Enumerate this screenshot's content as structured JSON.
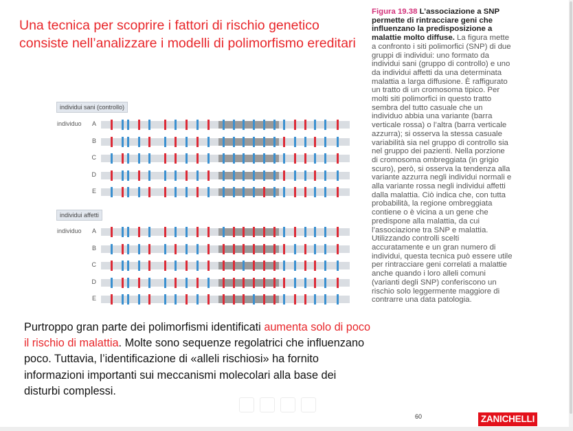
{
  "slide": {
    "title_line1": "Una tecnica per scoprire i fattori di rischio genetico",
    "title_line2": "consiste nell’analizzare i modelli di polimorfismo ereditari",
    "caption_head_num": "Figura 19.38",
    "caption_head_rest": " L’associazione a SNP permette di rintracciare geni che influenzano la predisposizione a malattie molto diffuse.",
    "caption_body": " La figura mette a confronto i siti polimorfici (SNP) di due gruppi di individui: uno formato da individui sani (gruppo di controllo) e uno da individui affetti da una determinata malattia a larga diffusione. È raffigurato un tratto di un cromosoma tipico. Per molti siti polimorfici in questo tratto sembra del tutto casuale che un individuo abbia una variante (barra verticale rossa) o l’altra (barra verticale azzurra); si osserva la stessa casuale variabilità sia nel gruppo di controllo sia nel gruppo dei pazienti. Nella porzione di cromosoma ombreggiata (in grigio scuro), però, si osserva la tendenza alla variante azzurra negli individui normali e alla variante rossa negli individui affetti dalla malattia. Ciò indica che, con tutta probabilità, la regione ombreggiata contiene o è vicina a un gene che predispone alla malattia, da cui l’associazione tra SNP e malattia. Utilizzando controlli scelti accuratamente e un gran numero di individui, questa tecnica può essere utile per rintracciare geni correlati a malattie anche quando i loro alleli comuni (varianti degli SNP) conferiscono un rischio solo leggermente maggiore di contrarre una data patologia.",
    "bottom_part1": "Purtroppo gran parte dei polimorfismi identificati ",
    "bottom_red": "aumenta solo di poco il rischio di malattia",
    "bottom_part2": ". Molte sono sequenze regolatrici che influenzano poco. Tuttavia, l’identificazione di «alleli rischiosi» ha fornito informazioni importanti sui meccanismi molecolari alla base dei disturbi complessi.",
    "page_number": "60",
    "logo_text": "ZANICHELLI"
  },
  "diagram": {
    "colors": {
      "red": "#dd2a36",
      "blue": "#3a90d0",
      "track": "#d9dde2",
      "shaded": "#9a9a9a"
    },
    "individuo_label": "individuo",
    "groups": [
      {
        "label": "individui sani (controllo)",
        "rows": [
          {
            "letter": "A",
            "alleles": [
              "R",
              "B",
              "B",
              "R",
              "B",
              "R",
              "B",
              "R",
              "B",
              "R",
              "B",
              "B",
              "B",
              "B",
              "B",
              "B",
              "B",
              "R",
              "R",
              "B",
              "B",
              "R"
            ]
          },
          {
            "letter": "B",
            "alleles": [
              "R",
              "B",
              "B",
              "B",
              "R",
              "B",
              "R",
              "B",
              "R",
              "B",
              "B",
              "B",
              "B",
              "B",
              "B",
              "B",
              "R",
              "B",
              "B",
              "R",
              "B",
              "B"
            ]
          },
          {
            "letter": "C",
            "alleles": [
              "B",
              "R",
              "B",
              "B",
              "B",
              "R",
              "R",
              "B",
              "R",
              "B",
              "B",
              "B",
              "B",
              "B",
              "B",
              "B",
              "B",
              "R",
              "R",
              "B",
              "B",
              "R"
            ]
          },
          {
            "letter": "D",
            "alleles": [
              "R",
              "B",
              "B",
              "R",
              "B",
              "B",
              "B",
              "R",
              "B",
              "R",
              "B",
              "B",
              "B",
              "B",
              "B",
              "B",
              "R",
              "B",
              "B",
              "R",
              "B",
              "B"
            ]
          },
          {
            "letter": "E",
            "alleles": [
              "B",
              "R",
              "B",
              "B",
              "R",
              "R",
              "B",
              "B",
              "R",
              "B",
              "B",
              "B",
              "B",
              "B",
              "R",
              "B",
              "B",
              "R",
              "R",
              "B",
              "B",
              "R"
            ]
          }
        ]
      },
      {
        "label": "individui affetti",
        "rows": [
          {
            "letter": "A",
            "alleles": [
              "R",
              "B",
              "B",
              "R",
              "B",
              "R",
              "B",
              "B",
              "R",
              "R",
              "B",
              "R",
              "R",
              "R",
              "R",
              "R",
              "B",
              "R",
              "B",
              "B",
              "B",
              "R"
            ]
          },
          {
            "letter": "B",
            "alleles": [
              "B",
              "R",
              "B",
              "B",
              "R",
              "B",
              "R",
              "B",
              "B",
              "R",
              "R",
              "R",
              "R",
              "R",
              "R",
              "R",
              "R",
              "B",
              "R",
              "B",
              "B",
              "R"
            ]
          },
          {
            "letter": "C",
            "alleles": [
              "R",
              "B",
              "B",
              "B",
              "R",
              "R",
              "B",
              "R",
              "B",
              "R",
              "R",
              "R",
              "B",
              "R",
              "R",
              "R",
              "B",
              "B",
              "R",
              "R",
              "B",
              "B"
            ]
          },
          {
            "letter": "D",
            "alleles": [
              "B",
              "R",
              "B",
              "R",
              "B",
              "B",
              "R",
              "B",
              "R",
              "B",
              "R",
              "R",
              "R",
              "R",
              "R",
              "R",
              "R",
              "B",
              "B",
              "R",
              "B",
              "R"
            ]
          },
          {
            "letter": "E",
            "alleles": [
              "R",
              "B",
              "B",
              "B",
              "R",
              "B",
              "B",
              "R",
              "B",
              "R",
              "R",
              "R",
              "R",
              "B",
              "R",
              "R",
              "B",
              "R",
              "R",
              "B",
              "B",
              "B"
            ]
          }
        ]
      }
    ]
  }
}
